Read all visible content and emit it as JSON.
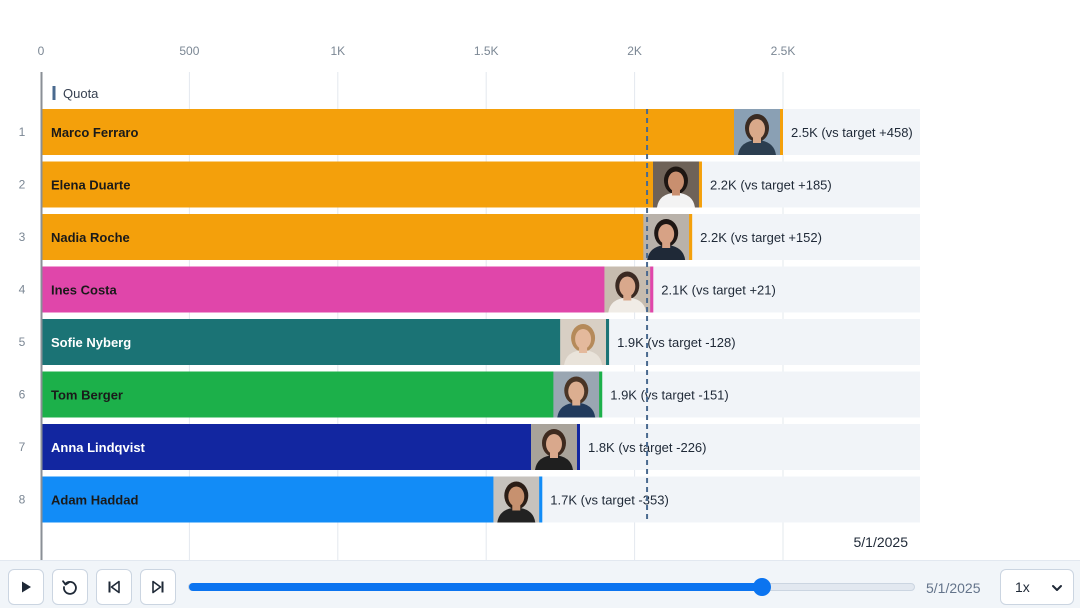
{
  "chart_data": {
    "type": "bar",
    "orientation": "horizontal",
    "title": "",
    "xlabel": "",
    "ylabel": "",
    "xlim": [
      0,
      2950
    ],
    "x_ticks": [
      0,
      500,
      1000,
      1500,
      2000,
      2500
    ],
    "x_tick_labels": [
      "0",
      "500",
      "1K",
      "1.5K",
      "2K",
      "2.5K"
    ],
    "grid": true,
    "legend": {
      "position": "top-left",
      "entries": [
        {
          "label": "Quota",
          "style": "dashed-line",
          "color": "#4a6a8f"
        }
      ]
    },
    "reference_line": {
      "name": "Quota",
      "value": 2042
    },
    "date": "5/1/2025",
    "categories": [
      "Marco Ferraro",
      "Elena Duarte",
      "Nadia Roche",
      "Ines Costa",
      "Sofie Nyberg",
      "Tom Berger",
      "Anna Lindqvist",
      "Adam Haddad"
    ],
    "ranks": [
      "1",
      "2",
      "3",
      "4",
      "5",
      "6",
      "7",
      "8"
    ],
    "values": [
      2500,
      2227,
      2194,
      2063,
      1914,
      1891,
      1816,
      1689
    ],
    "value_labels": [
      "2.5K (vs target +458)",
      "2.2K (vs target +185)",
      "2.2K (vs target +152)",
      "2.1K (vs target +21)",
      "1.9K (vs target -128)",
      "1.9K (vs target -151)",
      "1.8K (vs target -226)",
      "1.7K (vs target -353)"
    ],
    "bar_colors": [
      "#f4a00b",
      "#f4a00b",
      "#f4a00b",
      "#e046aa",
      "#1b7375",
      "#1cb04a",
      "#1226a0",
      "#128cf7"
    ],
    "name_colors": [
      "#1a1a1a",
      "#1a1a1a",
      "#1a1a1a",
      "#1a1a1a",
      "#ffffff",
      "#1a1a1a",
      "#ffffff",
      "#1a1a1a"
    ],
    "avatar_icons": [
      "person-avatar-icon",
      "person-avatar-icon",
      "person-avatar-icon",
      "person-avatar-icon",
      "person-avatar-icon",
      "person-avatar-icon",
      "person-avatar-icon",
      "person-avatar-icon"
    ],
    "avatar_tones": [
      {
        "bg": "#8aa0b4",
        "skin": "#d9a98a",
        "hair": "#3a2b22",
        "shirt": "#2c3e50"
      },
      {
        "bg": "#6e6258",
        "skin": "#c98f6f",
        "hair": "#1e1612",
        "shirt": "#f3f3f3"
      },
      {
        "bg": "#b9b2aa",
        "skin": "#d7a285",
        "hair": "#1f1714",
        "shirt": "#1f2937"
      },
      {
        "bg": "#c7bcaf",
        "skin": "#d9a88c",
        "hair": "#3b2a22",
        "shirt": "#f0ece6"
      },
      {
        "bg": "#d8cfc4",
        "skin": "#e4b99c",
        "hair": "#b58a5a",
        "shirt": "#e9e3da"
      },
      {
        "bg": "#9aa6b2",
        "skin": "#dcae90",
        "hair": "#4a3526",
        "shirt": "#213a5c"
      },
      {
        "bg": "#a9a39a",
        "skin": "#d9a88c",
        "hair": "#3e2a1f",
        "shirt": "#1f1f1f"
      },
      {
        "bg": "#c6c2bd",
        "skin": "#c7916f",
        "hair": "#2a1d16",
        "shirt": "#222222"
      }
    ]
  },
  "controls": {
    "play_icon": "play-icon",
    "replay_icon": "replay-icon",
    "skip_back_icon": "skip-back-icon",
    "skip_forward_icon": "skip-forward-icon",
    "progress": 0.79,
    "date_label": "5/1/2025",
    "speed": "1x",
    "accent_color": "#0b74f0"
  }
}
